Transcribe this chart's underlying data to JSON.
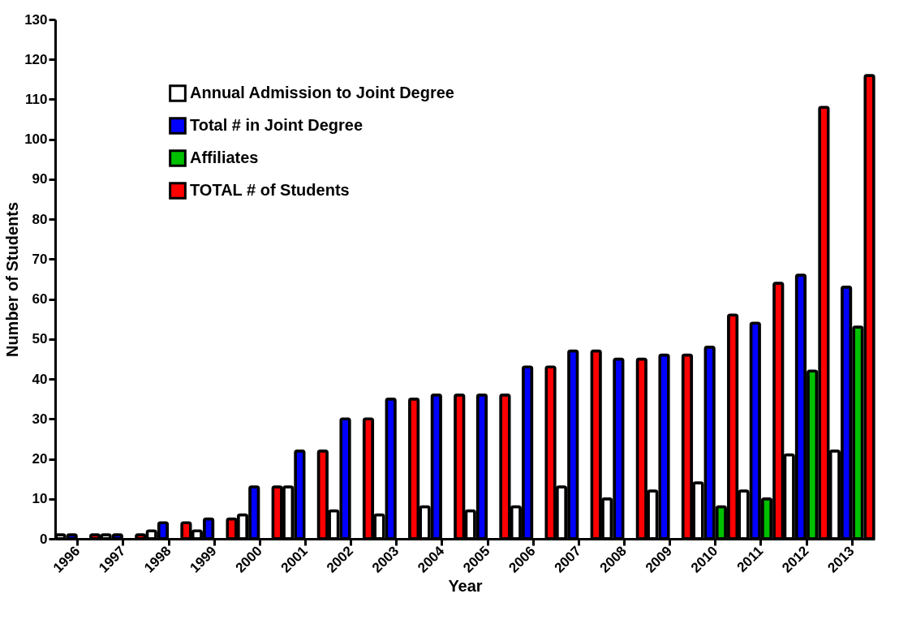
{
  "chart_data": {
    "type": "bar",
    "xlabel": "Year",
    "ylabel": "Number of Students",
    "categories": [
      "1996",
      "1997",
      "1998",
      "1999",
      "2000",
      "2001",
      "2002",
      "2003",
      "2004",
      "2005",
      "2006",
      "2007",
      "2008",
      "2009",
      "2010",
      "2011",
      "2012",
      "2013"
    ],
    "series": [
      {
        "name": "Annual Admission to Joint Degree",
        "color": "#ffffff",
        "values": [
          1,
          1,
          2,
          2,
          6,
          13,
          7,
          6,
          8,
          7,
          8,
          13,
          10,
          12,
          14,
          12,
          21,
          22
        ]
      },
      {
        "name": "Total # in Joint Degree",
        "color": "#0000ff",
        "values": [
          1,
          1,
          4,
          5,
          13,
          22,
          30,
          35,
          36,
          36,
          43,
          47,
          45,
          46,
          48,
          54,
          66,
          63
        ]
      },
      {
        "name": "Affiliates",
        "color": "#00c000",
        "values": [
          null,
          null,
          null,
          null,
          null,
          null,
          null,
          null,
          null,
          null,
          null,
          null,
          null,
          null,
          8,
          10,
          42,
          53
        ]
      },
      {
        "name": "TOTAL # of Students",
        "color": "#ff0000",
        "values": [
          1,
          1,
          4,
          5,
          13,
          22,
          30,
          35,
          36,
          36,
          43,
          47,
          45,
          46,
          56,
          64,
          108,
          116
        ]
      }
    ],
    "ylim": [
      0,
      130
    ],
    "yticks": [
      0,
      10,
      20,
      30,
      40,
      50,
      60,
      70,
      80,
      90,
      100,
      110,
      120,
      130
    ],
    "grid": false,
    "legend": "top left"
  }
}
